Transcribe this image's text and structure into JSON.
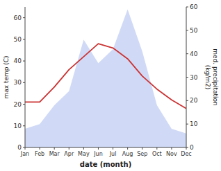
{
  "chart_data": {
    "type": "line",
    "categories": [
      "Jan",
      "Feb",
      "Mar",
      "Apr",
      "May",
      "Jun",
      "Jul",
      "Aug",
      "Sep",
      "Oct",
      "Nov",
      "Dec"
    ],
    "series": [
      {
        "type": "area",
        "axis": "y2",
        "color": "#aabbee",
        "values": [
          8,
          10,
          18,
          24,
          46,
          36,
          42,
          59,
          41,
          18,
          8,
          6
        ]
      },
      {
        "type": "line",
        "color": "#cc3333",
        "values": [
          21,
          21,
          28,
          36,
          42,
          48,
          46,
          41,
          33,
          27,
          22,
          18
        ]
      }
    ],
    "xlabel": "date (month)",
    "ylabel": "max temp (C)",
    "y2label": "med. precipitation\n(kg/m2)",
    "ylim": [
      0,
      65
    ],
    "yticks": [
      0,
      10,
      20,
      30,
      40,
      50,
      60
    ],
    "y2lim": [
      0,
      60
    ],
    "y2ticks": [
      0,
      10,
      20,
      30,
      40,
      50,
      60
    ],
    "grid": false
  }
}
